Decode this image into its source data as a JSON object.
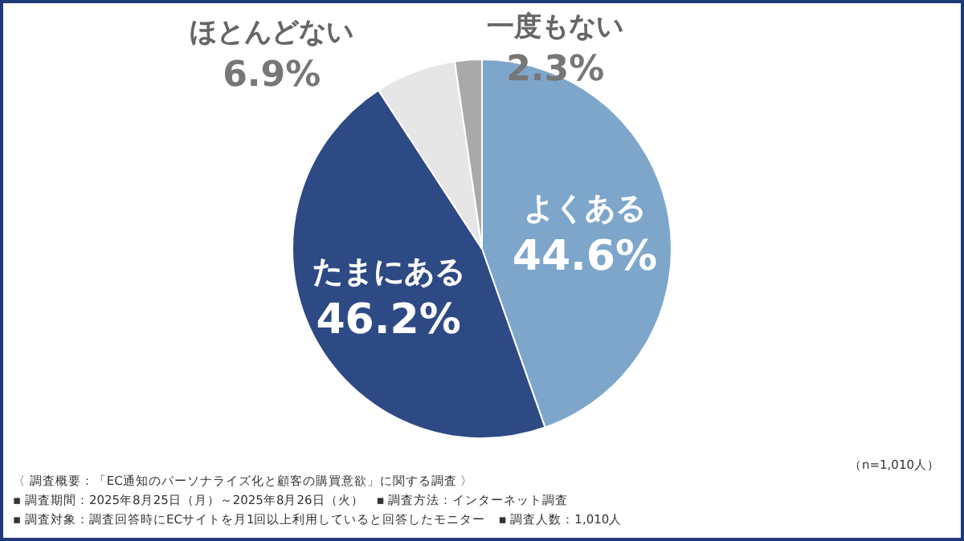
{
  "chart_data": {
    "type": "pie",
    "categories": [
      "よくある",
      "たまにある",
      "ほとんどない",
      "一度もない"
    ],
    "values": [
      44.6,
      46.2,
      6.9,
      2.3
    ],
    "value_labels": [
      "44.6%",
      "46.2%",
      "6.9%",
      "2.3%"
    ],
    "colors": [
      "#7ea6cb",
      "#2e4a85",
      "#e6e6e6",
      "#a9a9a9"
    ],
    "annotations": [
      "（n=1,010人）",
      "〈 調査概要：「EC通知のパーソナライズ化と顧客の購買意欲」に関する調査 〉",
      "▪ 調査期間：2025年8月25日（月）～2025年8月26日（火）　▪ 調査方法：インターネット調査",
      "▪ 調査対象：調査回答時にECサイトを月1回以上利用していると回答したモニター　▪ 調査人数：1,010人"
    ]
  }
}
